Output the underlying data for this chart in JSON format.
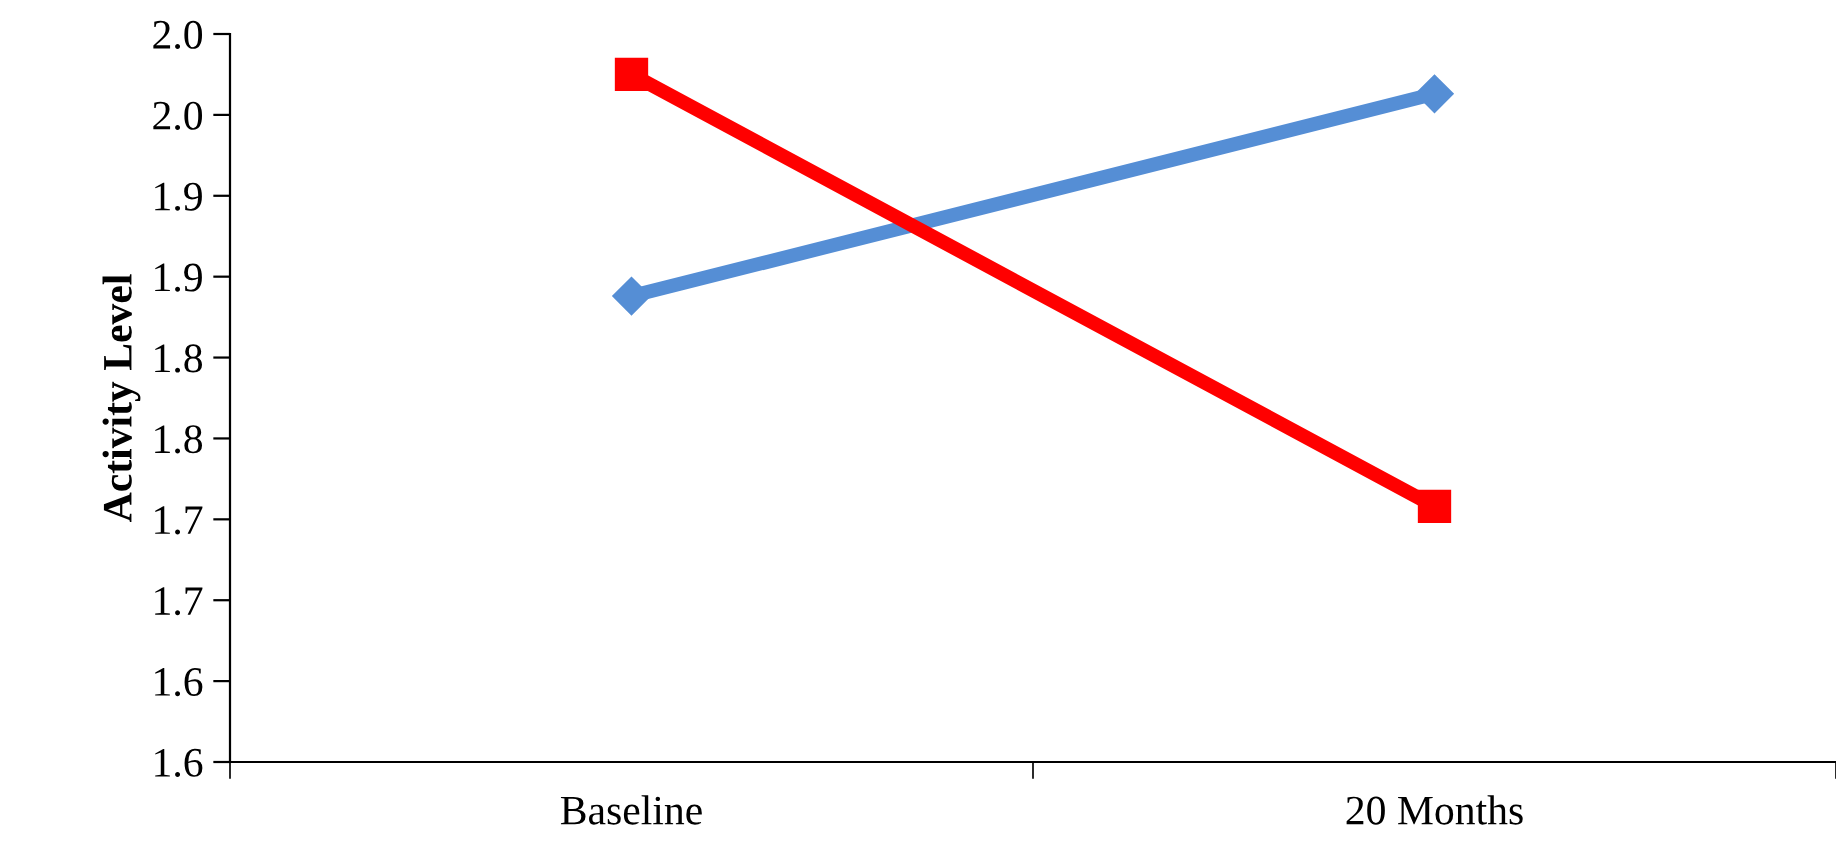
{
  "chart_data": {
    "type": "line",
    "ylabel": "Activity Level",
    "categories": [
      "Baseline",
      "20 Months"
    ],
    "series": [
      {
        "color": "#558ed5",
        "values": [
          1.838,
          1.963
        ],
        "marker": "diamond"
      },
      {
        "color": "#ff0000",
        "values": [
          1.975,
          1.708
        ],
        "marker": "square"
      }
    ],
    "ylim": [
      1.55,
      2.0
    ],
    "yticks": [
      {
        "value": 1.55,
        "label": "1.6"
      },
      {
        "value": 1.6,
        "label": "1.6"
      },
      {
        "value": 1.65,
        "label": "1.7"
      },
      {
        "value": 1.7,
        "label": "1.7"
      },
      {
        "value": 1.75,
        "label": "1.8"
      },
      {
        "value": 1.8,
        "label": "1.8"
      },
      {
        "value": 1.85,
        "label": "1.9"
      },
      {
        "value": 1.9,
        "label": "1.9"
      },
      {
        "value": 1.95,
        "label": "2.0"
      },
      {
        "value": 2.0,
        "label": "2.0"
      }
    ],
    "grid": false,
    "legend": false,
    "line_style": "solid"
  }
}
